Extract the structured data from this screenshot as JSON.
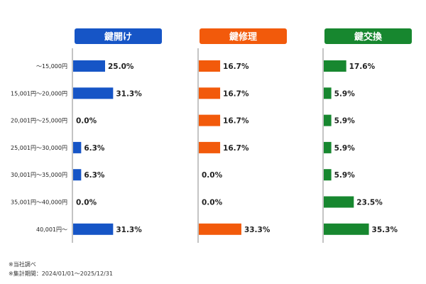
{
  "chart_data": {
    "type": "bar",
    "orientation": "horizontal",
    "layout": "small-multiples",
    "categories": [
      "～15,000円",
      "15,001円～20,000円",
      "20,001円～25,000円",
      "25,001円～30,000円",
      "30,001円～35,000円",
      "35,001円～40,000円",
      "40,001円～"
    ],
    "value_format": "{v}%",
    "series": [
      {
        "name": "鍵開け",
        "color": "#1655c6",
        "values": [
          25.0,
          31.3,
          0.0,
          6.3,
          6.3,
          0.0,
          31.3
        ]
      },
      {
        "name": "鍵修理",
        "color": "#f25a0b",
        "values": [
          16.7,
          16.7,
          16.7,
          16.7,
          0.0,
          0.0,
          33.3
        ]
      },
      {
        "name": "鍵交換",
        "color": "#17872f",
        "values": [
          17.6,
          5.9,
          5.9,
          5.9,
          5.9,
          23.5,
          35.3
        ]
      }
    ],
    "axis_color": "#888888"
  },
  "notes": [
    "※当社調べ",
    "※集計期間：2024/01/01～2025/12/31"
  ]
}
